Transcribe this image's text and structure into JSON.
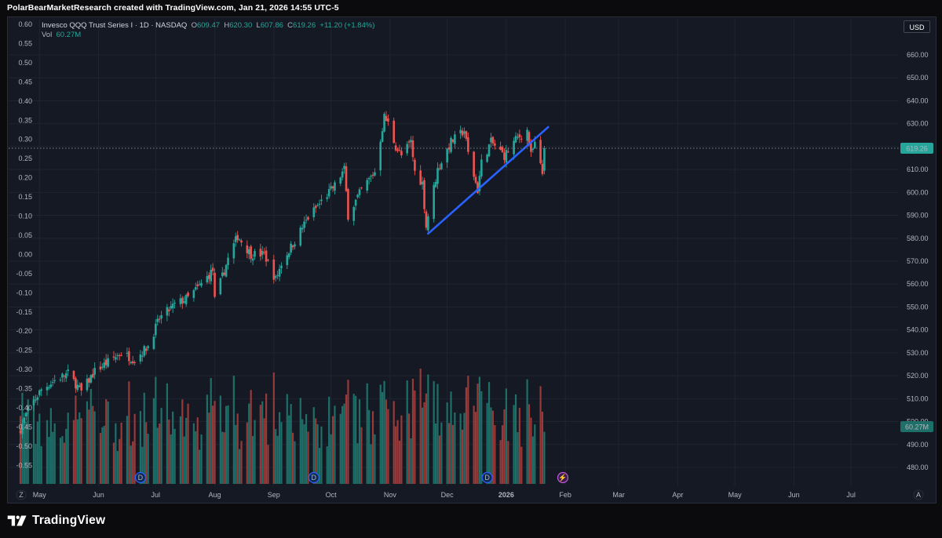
{
  "header": {
    "caption": "PolarBearMarketResearch created with TradingView.com, Jan 21, 2026 14:55 UTC-5"
  },
  "legend": {
    "symbol": "Invesco QQQ Trust Series I · 1D · NASDAQ",
    "open_label": "O",
    "open": "609.47",
    "high_label": "H",
    "high": "620.30",
    "low_label": "L",
    "low": "607.86",
    "close_label": "C",
    "close": "619.26",
    "change": "+11.20 (+1.84%)",
    "vol_label": "Vol",
    "vol_value": "60.27M"
  },
  "currency_button": "USD",
  "price_tag": "619.26",
  "volume_tag": "60.27M",
  "footer": {
    "brand": "TradingView"
  },
  "colors": {
    "background": "#151924",
    "up": "#26a69a",
    "down": "#ef5350",
    "up_volume": "#1e6f68",
    "down_volume": "#963a3a",
    "trendline": "#2962ff",
    "grid": "#1f2430"
  },
  "chart_data": {
    "type": "candlestick",
    "symbol": "QQQ",
    "right_axis": {
      "ticks": [
        660,
        650,
        640,
        630,
        620,
        610,
        600,
        590,
        580,
        570,
        560,
        550,
        540,
        530,
        520,
        510,
        500,
        490,
        480
      ],
      "labels": [
        "660.00",
        "650.00",
        "640.00",
        "630.00",
        "620.00",
        "610.00",
        "600.00",
        "590.00",
        "580.00",
        "570.00",
        "560.00",
        "550.00",
        "540.00",
        "530.00",
        "520.00",
        "510.00",
        "500.00",
        "490.00",
        "480.00"
      ],
      "ylim": [
        474.5,
        665.5
      ]
    },
    "left_axis": {
      "ticks": [
        0.6,
        0.55,
        0.5,
        0.45,
        0.4,
        0.35,
        0.3,
        0.25,
        0.2,
        0.15,
        0.1,
        0.05,
        0,
        -0.05,
        -0.1,
        -0.15,
        -0.2,
        -0.25,
        -0.3,
        -0.35,
        -0.4,
        -0.45,
        -0.5,
        -0.55
      ],
      "labels": [
        "0.60",
        "0.55",
        "0.50",
        "0.45",
        "0.40",
        "0.35",
        "0.30",
        "0.25",
        "0.20",
        "0.15",
        "0.10",
        "0.05",
        "0.00",
        "-0.05",
        "-0.10",
        "-0.15",
        "-0.20",
        "-0.25",
        "-0.30",
        "-0.35",
        "-0.40",
        "-0.45",
        "-0.50",
        "-0.55"
      ]
    },
    "x_axis": {
      "months": [
        "May",
        "Jun",
        "Jul",
        "Aug",
        "Sep",
        "Oct",
        "Nov",
        "Dec",
        "2026",
        "Feb",
        "Mar",
        "Apr",
        "May",
        "Jun",
        "Jul"
      ],
      "range": [
        "2025-04-21",
        "2026-07-31"
      ]
    },
    "price_anchors": [
      {
        "date": "2025-04-21",
        "price": 497
      },
      {
        "date": "2025-04-25",
        "price": 505
      },
      {
        "date": "2025-05-02",
        "price": 514
      },
      {
        "date": "2025-05-09",
        "price": 518
      },
      {
        "date": "2025-05-16",
        "price": 521
      },
      {
        "date": "2025-05-23",
        "price": 513
      },
      {
        "date": "2025-05-30",
        "price": 522
      },
      {
        "date": "2025-06-06",
        "price": 526
      },
      {
        "date": "2025-06-13",
        "price": 530
      },
      {
        "date": "2025-06-20",
        "price": 527
      },
      {
        "date": "2025-06-27",
        "price": 533
      },
      {
        "date": "2025-07-03",
        "price": 545
      },
      {
        "date": "2025-07-11",
        "price": 551
      },
      {
        "date": "2025-07-18",
        "price": 554
      },
      {
        "date": "2025-07-25",
        "price": 560
      },
      {
        "date": "2025-07-31",
        "price": 566
      },
      {
        "date": "2025-08-01",
        "price": 553
      },
      {
        "date": "2025-08-08",
        "price": 571
      },
      {
        "date": "2025-08-13",
        "price": 581
      },
      {
        "date": "2025-08-20",
        "price": 573
      },
      {
        "date": "2025-08-27",
        "price": 573
      },
      {
        "date": "2025-09-02",
        "price": 562
      },
      {
        "date": "2025-09-05",
        "price": 569
      },
      {
        "date": "2025-09-12",
        "price": 579
      },
      {
        "date": "2025-09-19",
        "price": 589
      },
      {
        "date": "2025-09-26",
        "price": 596
      },
      {
        "date": "2025-10-03",
        "price": 603
      },
      {
        "date": "2025-10-08",
        "price": 610
      },
      {
        "date": "2025-10-10",
        "price": 590
      },
      {
        "date": "2025-10-17",
        "price": 601
      },
      {
        "date": "2025-10-24",
        "price": 609
      },
      {
        "date": "2025-10-29",
        "price": 633
      },
      {
        "date": "2025-10-31",
        "price": 630
      },
      {
        "date": "2025-11-04",
        "price": 620
      },
      {
        "date": "2025-11-07",
        "price": 616
      },
      {
        "date": "2025-11-12",
        "price": 622
      },
      {
        "date": "2025-11-14",
        "price": 609
      },
      {
        "date": "2025-11-18",
        "price": 604
      },
      {
        "date": "2025-11-20",
        "price": 585
      },
      {
        "date": "2025-11-21",
        "price": 590
      },
      {
        "date": "2025-11-26",
        "price": 610
      },
      {
        "date": "2025-12-03",
        "price": 622
      },
      {
        "date": "2025-12-10",
        "price": 627
      },
      {
        "date": "2025-12-12",
        "price": 617
      },
      {
        "date": "2025-12-17",
        "price": 601
      },
      {
        "date": "2025-12-19",
        "price": 613
      },
      {
        "date": "2025-12-24",
        "price": 622
      },
      {
        "date": "2025-12-31",
        "price": 616
      },
      {
        "date": "2026-01-06",
        "price": 623
      },
      {
        "date": "2026-01-12",
        "price": 627
      },
      {
        "date": "2026-01-14",
        "price": 616
      },
      {
        "date": "2026-01-16",
        "price": 621
      },
      {
        "date": "2026-01-20",
        "price": 608.06
      },
      {
        "date": "2026-01-21",
        "price": 619.26
      }
    ],
    "trendline": {
      "from": {
        "date": "2025-11-21",
        "price": 582
      },
      "to": {
        "date": "2026-01-23",
        "price": 628.5
      }
    },
    "last_price": 619.26,
    "last_volume": "60.27M",
    "dividend_markers": [
      "2025-06-23",
      "2025-09-22",
      "2025-12-22"
    ]
  }
}
